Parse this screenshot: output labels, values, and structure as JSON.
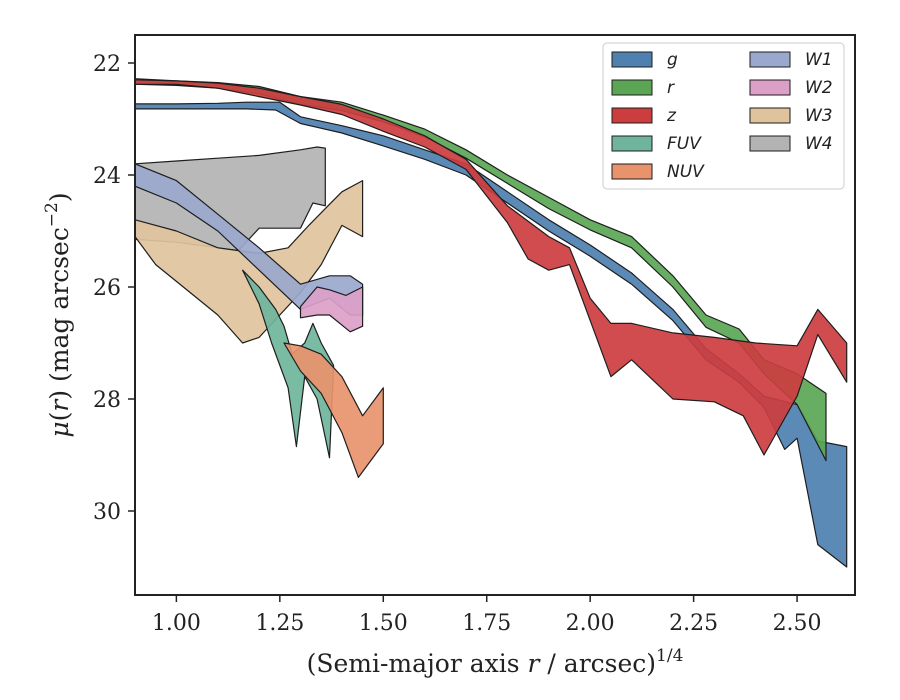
{
  "chart_data": {
    "type": "area",
    "xlabel": "(Semi-major axis r / arcsec)^1/4",
    "xlabel_parts": {
      "pre": "(Semi-major axis ",
      "var": "r",
      "mid": " / arcsec)",
      "sup": "1/4"
    },
    "ylabel": "μ(r) (mag arcsec^-2)",
    "ylabel_parts": {
      "mu": "μ",
      "open": "(",
      "var": "r",
      "close": ") (mag arcsec",
      "sup": "−2",
      "end": ")"
    },
    "xlim": [
      0.9,
      2.64
    ],
    "ylim": [
      31.5,
      21.5
    ],
    "y_inverted": true,
    "x_ticks": [
      1.0,
      1.25,
      1.5,
      1.75,
      2.0,
      2.25,
      2.5
    ],
    "x_tick_labels": [
      "1.00",
      "1.25",
      "1.50",
      "1.75",
      "2.00",
      "2.25",
      "2.50"
    ],
    "y_ticks": [
      22,
      24,
      26,
      28,
      30
    ],
    "y_tick_labels": [
      "22",
      "24",
      "26",
      "28",
      "30"
    ],
    "grid": false,
    "legend": {
      "position": "top-right",
      "columns": 2
    },
    "series": [
      {
        "name": "g",
        "color": "#4e80b0",
        "upper": [
          [
            0.9,
            22.73
          ],
          [
            1.0,
            22.73
          ],
          [
            1.1,
            22.72
          ],
          [
            1.17,
            22.7
          ],
          [
            1.25,
            22.7
          ],
          [
            1.3,
            22.96
          ],
          [
            1.4,
            23.12
          ],
          [
            1.5,
            23.3
          ],
          [
            1.6,
            23.55
          ],
          [
            1.7,
            23.8
          ],
          [
            1.8,
            24.3
          ],
          [
            1.9,
            24.8
          ],
          [
            2.0,
            25.25
          ],
          [
            2.1,
            25.75
          ],
          [
            2.2,
            26.4
          ],
          [
            2.28,
            27.1
          ],
          [
            2.36,
            27.55
          ],
          [
            2.42,
            27.95
          ],
          [
            2.5,
            28.1
          ],
          [
            2.55,
            28.75
          ],
          [
            2.62,
            28.85
          ]
        ],
        "lower": [
          [
            0.9,
            22.82
          ],
          [
            1.0,
            22.82
          ],
          [
            1.1,
            22.82
          ],
          [
            1.17,
            22.82
          ],
          [
            1.24,
            22.84
          ],
          [
            1.3,
            23.08
          ],
          [
            1.4,
            23.25
          ],
          [
            1.5,
            23.48
          ],
          [
            1.6,
            23.72
          ],
          [
            1.7,
            24.0
          ],
          [
            1.8,
            24.5
          ],
          [
            1.9,
            25.0
          ],
          [
            2.0,
            25.45
          ],
          [
            2.1,
            25.95
          ],
          [
            2.2,
            26.6
          ],
          [
            2.28,
            27.3
          ],
          [
            2.36,
            27.7
          ],
          [
            2.42,
            28.15
          ],
          [
            2.47,
            28.9
          ],
          [
            2.5,
            28.7
          ],
          [
            2.55,
            30.6
          ],
          [
            2.62,
            31.0
          ]
        ]
      },
      {
        "name": "r",
        "color": "#5aa655",
        "upper": [
          [
            0.9,
            22.28
          ],
          [
            1.0,
            22.32
          ],
          [
            1.1,
            22.35
          ],
          [
            1.2,
            22.42
          ],
          [
            1.3,
            22.6
          ],
          [
            1.4,
            22.7
          ],
          [
            1.5,
            22.93
          ],
          [
            1.6,
            23.18
          ],
          [
            1.7,
            23.55
          ],
          [
            1.8,
            24.0
          ],
          [
            1.9,
            24.4
          ],
          [
            2.0,
            24.8
          ],
          [
            2.1,
            25.1
          ],
          [
            2.2,
            25.8
          ],
          [
            2.28,
            26.5
          ],
          [
            2.36,
            26.75
          ],
          [
            2.42,
            27.3
          ],
          [
            2.5,
            27.55
          ],
          [
            2.57,
            27.9
          ]
        ],
        "lower": [
          [
            0.9,
            22.38
          ],
          [
            1.0,
            22.4
          ],
          [
            1.1,
            22.45
          ],
          [
            1.2,
            22.55
          ],
          [
            1.3,
            22.74
          ],
          [
            1.4,
            22.85
          ],
          [
            1.5,
            23.05
          ],
          [
            1.6,
            23.32
          ],
          [
            1.7,
            23.7
          ],
          [
            1.8,
            24.15
          ],
          [
            1.9,
            24.6
          ],
          [
            2.0,
            24.98
          ],
          [
            2.1,
            25.3
          ],
          [
            2.2,
            26.0
          ],
          [
            2.28,
            26.72
          ],
          [
            2.36,
            27.0
          ],
          [
            2.42,
            27.55
          ],
          [
            2.5,
            28.1
          ],
          [
            2.57,
            29.1
          ]
        ]
      },
      {
        "name": "z",
        "color": "#cc3d3f",
        "upper": [
          [
            0.9,
            22.3
          ],
          [
            1.0,
            22.32
          ],
          [
            1.1,
            22.36
          ],
          [
            1.2,
            22.45
          ],
          [
            1.3,
            22.6
          ],
          [
            1.4,
            22.74
          ],
          [
            1.5,
            23.0
          ],
          [
            1.6,
            23.3
          ],
          [
            1.7,
            23.72
          ],
          [
            1.8,
            24.55
          ],
          [
            1.9,
            25.1
          ],
          [
            1.95,
            25.3
          ],
          [
            2.0,
            26.2
          ],
          [
            2.05,
            26.65
          ],
          [
            2.1,
            26.65
          ],
          [
            2.2,
            26.82
          ],
          [
            2.3,
            26.9
          ],
          [
            2.4,
            27.0
          ],
          [
            2.5,
            27.05
          ],
          [
            2.55,
            26.4
          ],
          [
            2.62,
            27.0
          ]
        ],
        "lower": [
          [
            0.9,
            22.38
          ],
          [
            1.0,
            22.38
          ],
          [
            1.1,
            22.45
          ],
          [
            1.2,
            22.6
          ],
          [
            1.3,
            22.75
          ],
          [
            1.4,
            22.92
          ],
          [
            1.5,
            23.22
          ],
          [
            1.6,
            23.5
          ],
          [
            1.7,
            23.9
          ],
          [
            1.8,
            24.85
          ],
          [
            1.85,
            25.5
          ],
          [
            1.9,
            25.7
          ],
          [
            1.95,
            25.6
          ],
          [
            2.0,
            26.6
          ],
          [
            2.05,
            27.6
          ],
          [
            2.1,
            27.3
          ],
          [
            2.2,
            28.0
          ],
          [
            2.3,
            28.05
          ],
          [
            2.37,
            28.3
          ],
          [
            2.42,
            29.0
          ],
          [
            2.5,
            27.95
          ],
          [
            2.55,
            26.85
          ],
          [
            2.62,
            27.7
          ]
        ]
      },
      {
        "name": "FUV",
        "color": "#6fb59c",
        "upper": [
          [
            1.16,
            25.7
          ],
          [
            1.2,
            26.0
          ],
          [
            1.24,
            26.4
          ],
          [
            1.26,
            26.7
          ],
          [
            1.28,
            27.2
          ],
          [
            1.31,
            27.0
          ],
          [
            1.33,
            26.65
          ],
          [
            1.35,
            27.0
          ],
          [
            1.38,
            27.4
          ]
        ],
        "lower": [
          [
            1.16,
            25.7
          ],
          [
            1.2,
            26.3
          ],
          [
            1.23,
            27.0
          ],
          [
            1.27,
            27.8
          ],
          [
            1.29,
            28.85
          ],
          [
            1.31,
            27.6
          ],
          [
            1.34,
            28.0
          ],
          [
            1.37,
            29.05
          ],
          [
            1.38,
            27.4
          ]
        ]
      },
      {
        "name": "NUV",
        "color": "#e8936c",
        "upper": [
          [
            1.26,
            27.0
          ],
          [
            1.3,
            27.05
          ],
          [
            1.35,
            27.2
          ],
          [
            1.4,
            27.6
          ],
          [
            1.45,
            28.3
          ],
          [
            1.5,
            27.8
          ]
        ],
        "lower": [
          [
            1.26,
            27.0
          ],
          [
            1.3,
            27.5
          ],
          [
            1.35,
            27.9
          ],
          [
            1.4,
            28.6
          ],
          [
            1.44,
            29.4
          ],
          [
            1.5,
            28.8
          ]
        ]
      },
      {
        "name": "W1",
        "color": "#9aa8cd",
        "upper": [
          [
            0.9,
            23.8
          ],
          [
            1.0,
            24.1
          ],
          [
            1.1,
            24.7
          ],
          [
            1.2,
            25.3
          ],
          [
            1.3,
            25.95
          ],
          [
            1.37,
            25.8
          ],
          [
            1.42,
            25.8
          ],
          [
            1.45,
            25.95
          ]
        ],
        "lower": [
          [
            0.9,
            24.2
          ],
          [
            1.0,
            24.5
          ],
          [
            1.1,
            25.0
          ],
          [
            1.2,
            25.7
          ],
          [
            1.3,
            26.4
          ],
          [
            1.37,
            26.2
          ],
          [
            1.42,
            26.5
          ],
          [
            1.45,
            26.5
          ]
        ]
      },
      {
        "name": "W2",
        "color": "#dc9fc8",
        "upper": [
          [
            1.3,
            26.35
          ],
          [
            1.34,
            26.0
          ],
          [
            1.37,
            26.05
          ],
          [
            1.41,
            26.15
          ],
          [
            1.45,
            26.0
          ]
        ],
        "lower": [
          [
            1.3,
            26.55
          ],
          [
            1.34,
            26.5
          ],
          [
            1.37,
            26.5
          ],
          [
            1.42,
            26.8
          ],
          [
            1.45,
            26.7
          ]
        ]
      },
      {
        "name": "W3",
        "color": "#dfc39c",
        "upper": [
          [
            0.9,
            24.8
          ],
          [
            1.0,
            25.0
          ],
          [
            1.1,
            25.3
          ],
          [
            1.2,
            25.4
          ],
          [
            1.27,
            25.3
          ],
          [
            1.32,
            24.9
          ],
          [
            1.36,
            24.6
          ],
          [
            1.4,
            24.3
          ],
          [
            1.45,
            24.1
          ]
        ],
        "lower": [
          [
            0.9,
            25.1
          ],
          [
            0.95,
            25.6
          ],
          [
            1.0,
            25.9
          ],
          [
            1.1,
            26.5
          ],
          [
            1.16,
            27.0
          ],
          [
            1.2,
            26.9
          ],
          [
            1.25,
            26.5
          ],
          [
            1.3,
            26.1
          ],
          [
            1.35,
            25.6
          ],
          [
            1.4,
            24.9
          ],
          [
            1.45,
            25.1
          ]
        ]
      },
      {
        "name": "W4",
        "color": "#b3b3b3",
        "upper": [
          [
            0.9,
            23.8
          ],
          [
            1.0,
            23.75
          ],
          [
            1.1,
            23.7
          ],
          [
            1.2,
            23.65
          ],
          [
            1.3,
            23.55
          ],
          [
            1.34,
            23.5
          ],
          [
            1.36,
            23.52
          ]
        ],
        "lower": [
          [
            0.9,
            25.15
          ],
          [
            1.0,
            25.2
          ],
          [
            1.1,
            25.3
          ],
          [
            1.15,
            25.35
          ],
          [
            1.2,
            24.95
          ],
          [
            1.3,
            24.95
          ],
          [
            1.33,
            24.5
          ],
          [
            1.36,
            24.55
          ]
        ]
      }
    ]
  }
}
